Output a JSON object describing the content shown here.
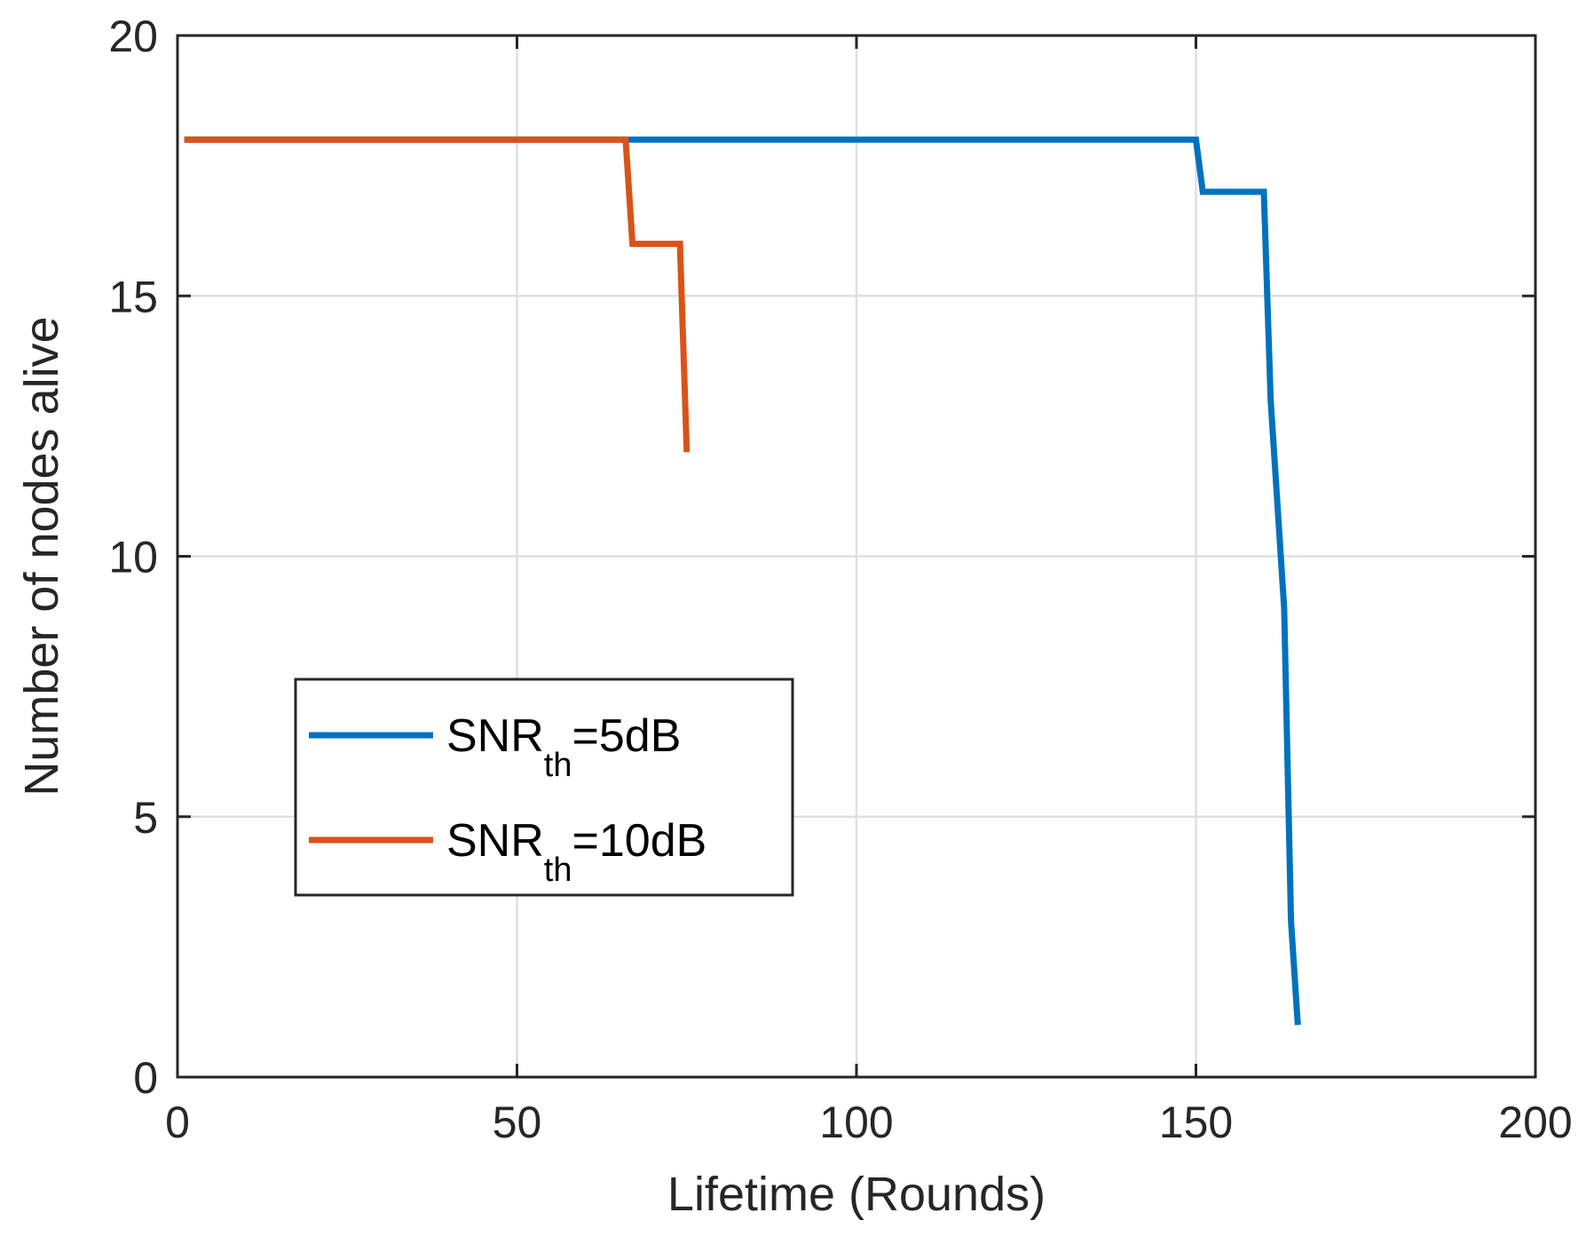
{
  "chart_data": {
    "type": "line",
    "xlabel": "Lifetime (Rounds)",
    "ylabel": "Number of nodes alive",
    "xlim": [
      0,
      200
    ],
    "ylim": [
      0,
      20
    ],
    "xticks": [
      "0",
      "50",
      "100",
      "150",
      "200"
    ],
    "yticks": [
      "0",
      "5",
      "10",
      "15",
      "20"
    ],
    "grid": true,
    "legend_position": "lower-left",
    "series": [
      {
        "name": "SNR_th=5dB",
        "legend": {
          "base": "SNR",
          "sub": "th",
          "rest": "=5dB"
        },
        "color": "#0072BD",
        "x": [
          1,
          150,
          151,
          160,
          161,
          162,
          163,
          164,
          165
        ],
        "y": [
          18,
          18,
          17,
          17,
          13,
          11,
          9,
          3,
          1
        ]
      },
      {
        "name": "SNR_th=10dB",
        "legend": {
          "base": "SNR",
          "sub": "th",
          "rest": "=10dB"
        },
        "color": "#D95319",
        "x": [
          1,
          66,
          67,
          74,
          75
        ],
        "y": [
          18,
          18,
          16,
          16,
          12
        ]
      }
    ]
  }
}
